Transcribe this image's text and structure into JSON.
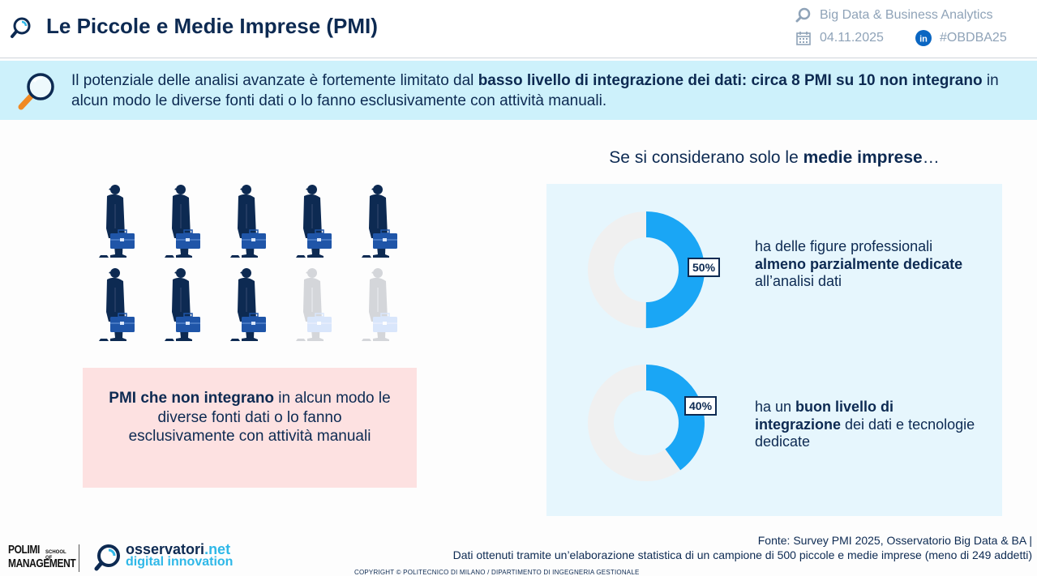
{
  "header": {
    "title": "Le Piccole e Medie Imprese (PMI)",
    "program": "Big Data & Business Analytics",
    "date": "04.11.2025",
    "hashtag": "#OBDBA25"
  },
  "banner": {
    "text_1": "Il potenziale delle analisi avanzate è fortemente limitato dal ",
    "text_bold": "basso livello di integrazione dei dati: circa 8 PMI su 10 non integrano",
    "text_2": " in alcun modo le diverse fonti dati o lo fanno esclusivamente con attività manuali."
  },
  "left": {
    "people_total": 10,
    "people_highlighted": 8,
    "caption_bold": "PMI che non integrano",
    "caption_rest": " in alcun modo le diverse fonti dati o lo fanno esclusivamente con attività manuali"
  },
  "right": {
    "heading_1": "Se si considerano solo le ",
    "heading_bold": "medie imprese",
    "heading_2": "…",
    "stats": [
      {
        "value": 50,
        "label": "50%",
        "text_1": "ha delle figure professionali ",
        "text_bold": "almeno parzialmente dedicate",
        "text_2": " all’analisi dati"
      },
      {
        "value": 40,
        "label": "40%",
        "text_1": "ha un ",
        "text_bold": "buon livello di integrazione",
        "text_2": " dei dati e tecnologie dedicate"
      }
    ]
  },
  "footer": {
    "polimi_line1": "POLIMI",
    "polimi_line2": "MANAGEMENT",
    "polimi_school_1": "SCHOOL OF",
    "polimi_school_2": "",
    "osservatori_1": "osservatori",
    "osservatori_2": ".net",
    "osservatori_sub": "digital innovation",
    "source_1": "Fonte: Survey PMI 2025, Osservatorio Big Data & BA |",
    "source_2": "Dati ottenuti tramite un’elaborazione statistica di un campione di 500 piccole e medie imprese (meno di 249 addetti)",
    "copyright": "COPYRIGHT © POLITECNICO DI MILANO / DIPARTIMENTO DI INGEGNERIA GESTIONALE"
  },
  "colors": {
    "navy": "#0d2a52",
    "accent_blue": "#1aa6f5",
    "donut_rest": "#f0f0f0",
    "briefcase": "#1f55a8",
    "person_faded": "#d4d6da",
    "pink": "#fde1e1",
    "light_blue_panel": "#e6f6fd",
    "banner": "#cdf1fb"
  }
}
